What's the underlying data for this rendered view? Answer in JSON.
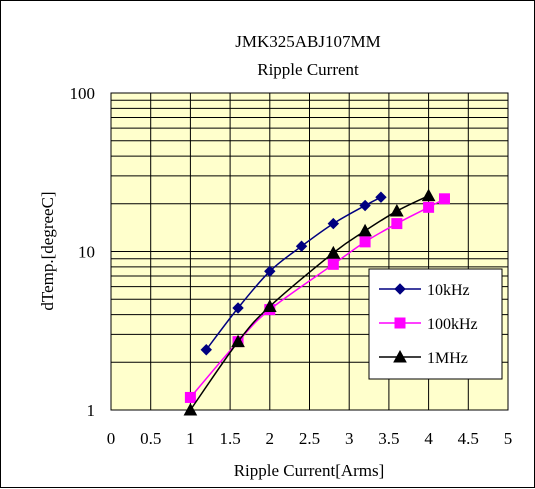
{
  "chart_data": {
    "type": "line",
    "title": "JMK325ABJ107MM",
    "subtitle": "Ripple Current",
    "xlabel": "Ripple Current[Arms]",
    "ylabel": "dTemp.[degreeC]",
    "xlim": [
      0,
      5
    ],
    "ylim": [
      1,
      100
    ],
    "y_scale": "log",
    "x_ticks": [
      "0",
      "0.5",
      "1",
      "1.5",
      "2",
      "2.5",
      "3",
      "3.5",
      "4",
      "4.5",
      "5"
    ],
    "y_ticks": [
      "1",
      "10",
      "100"
    ],
    "grid": true,
    "plot_background": "#ffffcc",
    "legend_position": "lower-right",
    "series": [
      {
        "name": "10kHz",
        "color": "#000080",
        "marker": "diamond",
        "x": [
          1.2,
          1.6,
          2.0,
          2.4,
          2.8,
          3.2,
          3.4
        ],
        "y": [
          2.4,
          4.4,
          7.5,
          10.8,
          15.0,
          19.5,
          22.0
        ]
      },
      {
        "name": "100kHz",
        "color": "#ff00ff",
        "marker": "square",
        "x": [
          1.0,
          1.6,
          2.0,
          2.8,
          3.2,
          3.6,
          4.0,
          4.2
        ],
        "y": [
          1.2,
          2.7,
          4.3,
          8.3,
          11.5,
          15.0,
          19.0,
          21.5
        ]
      },
      {
        "name": "1MHz",
        "color": "#000000",
        "marker": "triangle",
        "x": [
          1.0,
          1.6,
          2.0,
          2.8,
          3.2,
          3.6,
          4.0
        ],
        "y": [
          1.0,
          2.7,
          4.5,
          9.8,
          13.5,
          18.0,
          22.5
        ]
      }
    ]
  }
}
